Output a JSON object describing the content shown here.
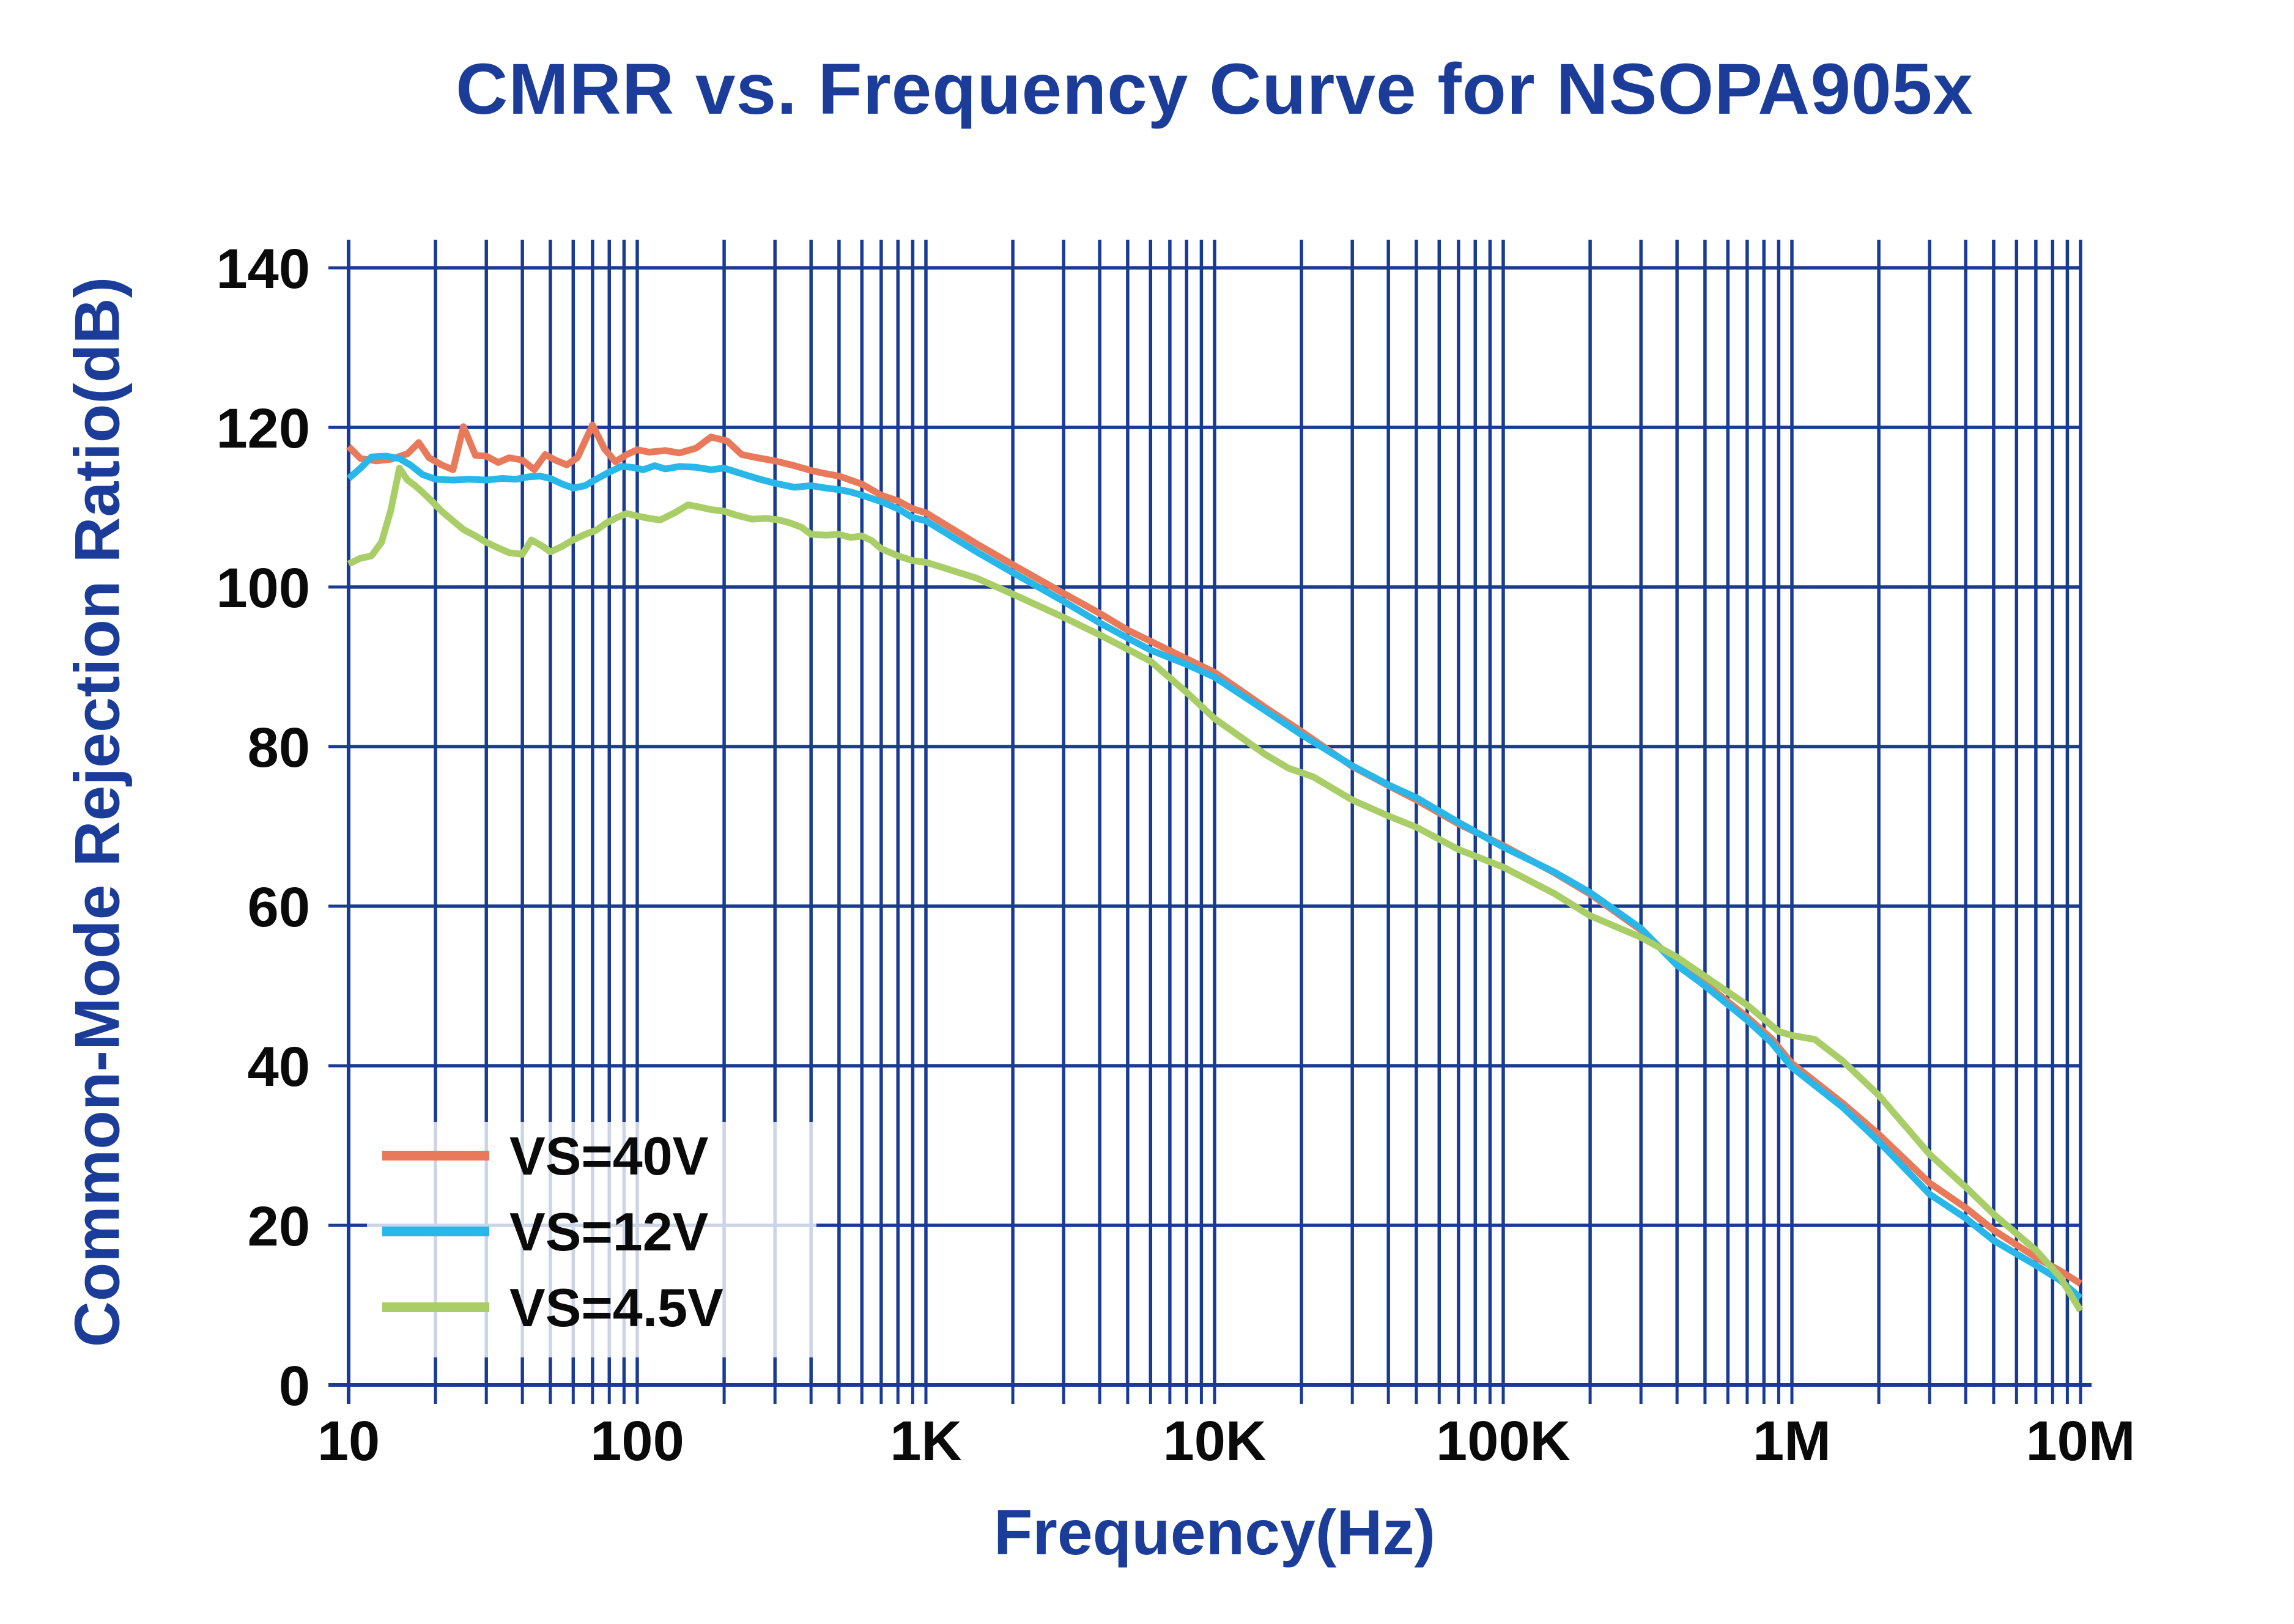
{
  "chart_data": {
    "type": "line",
    "title": "CMRR vs. Frequency Curve for NSOPA905x",
    "xlabel": "Frequency(Hz)",
    "ylabel": "Common-Mode Rejection Ratio(dB)",
    "x_scale": "log",
    "x_range": [
      10,
      10000000
    ],
    "y_range": [
      0,
      140
    ],
    "y_tick_step": 20,
    "y_tick_labels": [
      "0",
      "20",
      "40",
      "60",
      "80",
      "100",
      "120",
      "140"
    ],
    "x_ticks": [
      {
        "value": 10,
        "label": "10"
      },
      {
        "value": 100,
        "label": "100"
      },
      {
        "value": 1000,
        "label": "1K"
      },
      {
        "value": 10000,
        "label": "10K"
      },
      {
        "value": 100000,
        "label": "100K"
      },
      {
        "value": 1000000,
        "label": "1M"
      },
      {
        "value": 10000000,
        "label": "10M"
      }
    ],
    "grid": "navy log minor verticals + 20dB horizontals, grid on",
    "legend_position": "lower-left",
    "colors": {
      "grid_navy": "#1a3b94",
      "text_navy": "#1b3d99",
      "tick_label_black": "#0a0a0a",
      "legend_box": "rgba(255,255,255,0.78)"
    },
    "series": [
      {
        "name": "VS=40V",
        "color": "#e87a5b",
        "points": [
          [
            10,
            117.6
          ],
          [
            11,
            116.1
          ],
          [
            12.5,
            115.8
          ],
          [
            14,
            116.0
          ],
          [
            16,
            116.7
          ],
          [
            17.5,
            118.1
          ],
          [
            19,
            116.2
          ],
          [
            21,
            115.3
          ],
          [
            23,
            114.7
          ],
          [
            25,
            120.1
          ],
          [
            27.5,
            116.5
          ],
          [
            30,
            116.4
          ],
          [
            33,
            115.6
          ],
          [
            36,
            116.2
          ],
          [
            40,
            115.9
          ],
          [
            44,
            114.7
          ],
          [
            48,
            116.6
          ],
          [
            52,
            115.9
          ],
          [
            57,
            115.3
          ],
          [
            62,
            116.2
          ],
          [
            70,
            120.3
          ],
          [
            77,
            117.3
          ],
          [
            84,
            115.7
          ],
          [
            92,
            116.6
          ],
          [
            100,
            117.2
          ],
          [
            110,
            116.9
          ],
          [
            125,
            117.1
          ],
          [
            140,
            116.8
          ],
          [
            160,
            117.4
          ],
          [
            180,
            118.8
          ],
          [
            205,
            118.3
          ],
          [
            230,
            116.6
          ],
          [
            260,
            116.2
          ],
          [
            300,
            115.8
          ],
          [
            350,
            115.2
          ],
          [
            400,
            114.6
          ],
          [
            450,
            114.2
          ],
          [
            500,
            113.9
          ],
          [
            600,
            112.9
          ],
          [
            700,
            111.5
          ],
          [
            800,
            110.8
          ],
          [
            900,
            109.8
          ],
          [
            1000,
            109.3
          ],
          [
            1500,
            105.4
          ],
          [
            2000,
            102.8
          ],
          [
            3000,
            99.2
          ],
          [
            4000,
            96.7
          ],
          [
            5000,
            94.6
          ],
          [
            6000,
            93.2
          ],
          [
            8000,
            91.0
          ],
          [
            10000,
            89.3
          ],
          [
            15000,
            84.9
          ],
          [
            20000,
            81.9
          ],
          [
            30000,
            77.5
          ],
          [
            40000,
            75.1
          ],
          [
            50000,
            73.3
          ],
          [
            70000,
            70.3
          ],
          [
            100000,
            67.6
          ],
          [
            150000,
            64.2
          ],
          [
            200000,
            61.5
          ],
          [
            300000,
            57.0
          ],
          [
            400000,
            52.9
          ],
          [
            500000,
            50.3
          ],
          [
            700000,
            46.1
          ],
          [
            850000,
            43.4
          ],
          [
            1000000,
            40.3
          ],
          [
            1500000,
            35.3
          ],
          [
            2000000,
            31.4
          ],
          [
            3000000,
            25.3
          ],
          [
            4000000,
            22.2
          ],
          [
            5000000,
            19.4
          ],
          [
            7000000,
            16.0
          ],
          [
            8500000,
            14.3
          ],
          [
            10000000,
            12.7
          ]
        ]
      },
      {
        "name": "VS=12V",
        "color": "#29b6e8",
        "points": [
          [
            10,
            113.6
          ],
          [
            11,
            114.9
          ],
          [
            12,
            116.3
          ],
          [
            13.5,
            116.4
          ],
          [
            15,
            116.1
          ],
          [
            16.5,
            115.2
          ],
          [
            18,
            114.1
          ],
          [
            20,
            113.5
          ],
          [
            23,
            113.4
          ],
          [
            26,
            113.5
          ],
          [
            30,
            113.4
          ],
          [
            34,
            113.6
          ],
          [
            38,
            113.5
          ],
          [
            42,
            113.8
          ],
          [
            46,
            113.9
          ],
          [
            50,
            113.6
          ],
          [
            55,
            112.9
          ],
          [
            60,
            112.4
          ],
          [
            66,
            112.7
          ],
          [
            72,
            113.5
          ],
          [
            80,
            114.4
          ],
          [
            88,
            115.1
          ],
          [
            96,
            115.0
          ],
          [
            105,
            114.7
          ],
          [
            115,
            115.2
          ],
          [
            125,
            114.8
          ],
          [
            140,
            115.1
          ],
          [
            160,
            115.0
          ],
          [
            180,
            114.7
          ],
          [
            200,
            114.9
          ],
          [
            230,
            114.2
          ],
          [
            260,
            113.6
          ],
          [
            300,
            113.0
          ],
          [
            350,
            112.5
          ],
          [
            400,
            112.7
          ],
          [
            450,
            112.4
          ],
          [
            500,
            112.2
          ],
          [
            550,
            111.9
          ],
          [
            600,
            111.5
          ],
          [
            700,
            110.7
          ],
          [
            800,
            109.8
          ],
          [
            900,
            108.7
          ],
          [
            1000,
            108.3
          ],
          [
            1500,
            104.4
          ],
          [
            2000,
            101.8
          ],
          [
            3000,
            98.2
          ],
          [
            4000,
            95.5
          ],
          [
            5000,
            93.6
          ],
          [
            6000,
            92.1
          ],
          [
            8000,
            90.3
          ],
          [
            10000,
            88.7
          ],
          [
            15000,
            84.5
          ],
          [
            20000,
            81.5
          ],
          [
            30000,
            77.6
          ],
          [
            40000,
            75.2
          ],
          [
            50000,
            73.6
          ],
          [
            70000,
            70.5
          ],
          [
            100000,
            67.4
          ],
          [
            150000,
            64.3
          ],
          [
            200000,
            61.7
          ],
          [
            300000,
            57.2
          ],
          [
            400000,
            52.6
          ],
          [
            500000,
            50.0
          ],
          [
            700000,
            45.7
          ],
          [
            850000,
            42.9
          ],
          [
            1000000,
            39.8
          ],
          [
            1500000,
            34.8
          ],
          [
            2000000,
            30.5
          ],
          [
            3000000,
            23.9
          ],
          [
            4000000,
            20.9
          ],
          [
            5000000,
            18.1
          ],
          [
            7000000,
            15.0
          ],
          [
            8500000,
            13.1
          ],
          [
            10000000,
            10.9
          ]
        ]
      },
      {
        "name": "VS=4.5V",
        "color": "#a9ce67",
        "points": [
          [
            10,
            102.9
          ],
          [
            11,
            103.6
          ],
          [
            12,
            103.9
          ],
          [
            13,
            105.6
          ],
          [
            14,
            109.6
          ],
          [
            15,
            114.9
          ],
          [
            16,
            113.4
          ],
          [
            17,
            112.7
          ],
          [
            18,
            111.9
          ],
          [
            19.5,
            110.7
          ],
          [
            21,
            109.5
          ],
          [
            23,
            108.3
          ],
          [
            25,
            107.2
          ],
          [
            27.5,
            106.4
          ],
          [
            30,
            105.6
          ],
          [
            33,
            104.9
          ],
          [
            36,
            104.3
          ],
          [
            40,
            104.1
          ],
          [
            43,
            105.9
          ],
          [
            47,
            105.1
          ],
          [
            50,
            104.4
          ],
          [
            55,
            105.1
          ],
          [
            60,
            105.9
          ],
          [
            66,
            106.6
          ],
          [
            72,
            107.1
          ],
          [
            78,
            108.0
          ],
          [
            85,
            108.7
          ],
          [
            92,
            109.2
          ],
          [
            100,
            108.9
          ],
          [
            110,
            108.6
          ],
          [
            120,
            108.4
          ],
          [
            135,
            109.3
          ],
          [
            150,
            110.3
          ],
          [
            165,
            110.0
          ],
          [
            180,
            109.7
          ],
          [
            200,
            109.5
          ],
          [
            220,
            109.0
          ],
          [
            250,
            108.5
          ],
          [
            280,
            108.6
          ],
          [
            310,
            108.4
          ],
          [
            340,
            108.0
          ],
          [
            370,
            107.5
          ],
          [
            400,
            106.6
          ],
          [
            450,
            106.5
          ],
          [
            500,
            106.6
          ],
          [
            550,
            106.2
          ],
          [
            600,
            106.4
          ],
          [
            650,
            105.8
          ],
          [
            700,
            104.8
          ],
          [
            800,
            103.9
          ],
          [
            900,
            103.3
          ],
          [
            1000,
            103.1
          ],
          [
            1200,
            102.2
          ],
          [
            1500,
            101.1
          ],
          [
            2000,
            99.1
          ],
          [
            3000,
            96.2
          ],
          [
            4000,
            94.0
          ],
          [
            5000,
            92.2
          ],
          [
            6000,
            90.7
          ],
          [
            8000,
            86.8
          ],
          [
            10000,
            83.5
          ],
          [
            15000,
            79.0
          ],
          [
            18000,
            77.3
          ],
          [
            22000,
            76.2
          ],
          [
            30000,
            73.3
          ],
          [
            40000,
            71.3
          ],
          [
            50000,
            69.9
          ],
          [
            70000,
            67.1
          ],
          [
            100000,
            64.9
          ],
          [
            150000,
            61.6
          ],
          [
            200000,
            58.8
          ],
          [
            300000,
            56.1
          ],
          [
            400000,
            53.6
          ],
          [
            500000,
            51.2
          ],
          [
            700000,
            47.6
          ],
          [
            900000,
            44.3
          ],
          [
            1000000,
            43.8
          ],
          [
            1200000,
            43.3
          ],
          [
            1500000,
            40.6
          ],
          [
            2000000,
            36.3
          ],
          [
            3000000,
            28.9
          ],
          [
            4000000,
            24.8
          ],
          [
            5000000,
            21.4
          ],
          [
            7000000,
            16.9
          ],
          [
            8500000,
            13.5
          ],
          [
            10000000,
            9.3
          ]
        ]
      }
    ]
  }
}
